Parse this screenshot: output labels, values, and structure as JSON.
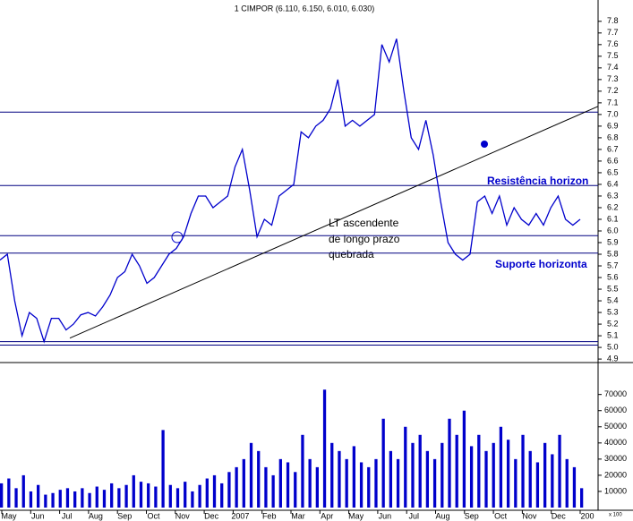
{
  "chart_data": {
    "type": "line",
    "title": "1 CIMPOR (6.110, 6.150, 6.010, 6.030)",
    "xticks": [
      "May",
      "Jun",
      "Jul",
      "Aug",
      "Sep",
      "Oct",
      "Nov",
      "Dec",
      "2007",
      "Feb",
      "Mar",
      "Apr",
      "May",
      "Jun",
      "Jul",
      "Aug",
      "Sep",
      "Oct",
      "Nov",
      "Dec",
      "200"
    ],
    "series": [
      {
        "name": "CIMPOR",
        "color": "#0000cc",
        "values": [
          5.75,
          5.8,
          5.4,
          5.1,
          5.3,
          5.25,
          5.05,
          5.25,
          5.25,
          5.15,
          5.2,
          5.28,
          5.3,
          5.27,
          5.35,
          5.45,
          5.6,
          5.65,
          5.8,
          5.7,
          5.55,
          5.6,
          5.7,
          5.8,
          5.85,
          5.95,
          6.15,
          6.3,
          6.3,
          6.2,
          6.25,
          6.3,
          6.55,
          6.7,
          6.35,
          5.95,
          6.1,
          6.05,
          6.3,
          6.35,
          6.4,
          6.85,
          6.8,
          6.9,
          6.95,
          7.05,
          7.3,
          6.9,
          6.95,
          6.9,
          6.95,
          7.0,
          7.6,
          7.45,
          7.65,
          7.2,
          6.8,
          6.7,
          6.95,
          6.65,
          6.25,
          5.9,
          5.8,
          5.75,
          5.8,
          6.25,
          6.3,
          6.15,
          6.3,
          6.05,
          6.2,
          6.1,
          6.05,
          6.15,
          6.05,
          6.2,
          6.3,
          6.1,
          6.05,
          6.1
        ]
      },
      {
        "name": "Volume",
        "color": "#0000cc",
        "axis": "y2",
        "values": [
          15000,
          18000,
          12000,
          20000,
          10000,
          14000,
          8000,
          9000,
          11000,
          12000,
          10000,
          12000,
          9000,
          13000,
          11000,
          15000,
          12000,
          14000,
          20000,
          16000,
          15000,
          13000,
          48000,
          14000,
          12000,
          16000,
          10000,
          14000,
          18000,
          20000,
          15000,
          22000,
          25000,
          30000,
          40000,
          35000,
          25000,
          20000,
          30000,
          28000,
          22000,
          45000,
          30000,
          25000,
          73000,
          40000,
          35000,
          30000,
          38000,
          28000,
          25000,
          30000,
          55000,
          35000,
          30000,
          50000,
          40000,
          45000,
          35000,
          30000,
          40000,
          55000,
          45000,
          60000,
          38000,
          45000,
          35000,
          40000,
          50000,
          42000,
          30000,
          45000,
          35000,
          28000,
          40000,
          33000,
          45000,
          30000,
          25000,
          12000
        ]
      }
    ],
    "ylim": [
      4.87,
      7.96
    ],
    "yticks": [
      4.9,
      {
        "value": 5.0,
        "label": "5.0"
      },
      5.1,
      5.2,
      5.3,
      5.4,
      5.5,
      5.6,
      5.7,
      5.8,
      5.9,
      {
        "value": 6.0,
        "label": "6.0"
      },
      6.1,
      6.2,
      6.3,
      6.4,
      6.5,
      6.6,
      6.7,
      6.8,
      6.9,
      {
        "value": 7.0,
        "label": "7.0"
      },
      7.1,
      7.2,
      7.3,
      7.4,
      7.5,
      7.6,
      7.7,
      7.8
    ],
    "y2lim": [
      0,
      87000
    ],
    "y2ticks": [
      10000,
      20000,
      30000,
      40000,
      50000,
      60000,
      70000
    ],
    "y2_unit_label": "x 100",
    "horizontal_lines": [
      7.02,
      6.39,
      5.96,
      5.81,
      5.05,
      5.02
    ],
    "trend_line": [
      5.08,
      7.07
    ],
    "annotations": [
      "LT ascendente",
      "de longo prazo",
      "quebrada",
      "Resistência horizon",
      "Suporte horizonta"
    ]
  }
}
